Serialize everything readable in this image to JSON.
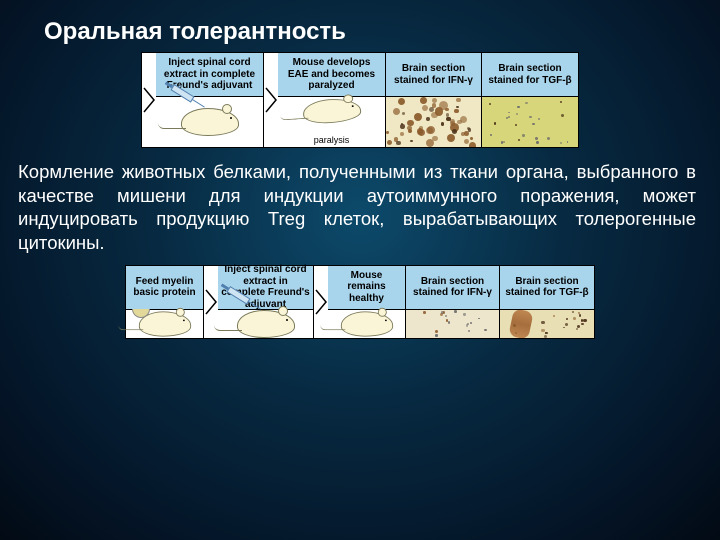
{
  "title": "Оральная толерантность",
  "body_text": "Кормление животных белками, полученными из ткани органа, выбранного в качестве мишени для индукции аутоиммунного поражения, может индуцировать продукцию Treg клеток, вырабатывающих толерогенные цитокины.",
  "row1": {
    "panels": [
      {
        "header": "Inject spinal cord extract in complete Freund's adjuvant"
      },
      {
        "header": "Mouse develops EAE and becomes paralyzed",
        "caption": "paralysis"
      },
      {
        "header": "Brain section stained for IFN-γ"
      },
      {
        "header": "Brain section stained for TGF-β"
      }
    ],
    "ifn_bg": "#f0e8c4",
    "tgf_bg": "#d8d67a"
  },
  "row2": {
    "panels": [
      {
        "header": "Feed myelin basic protein"
      },
      {
        "header": "Inject spinal cord extract in complete Freund's adjuvant"
      },
      {
        "header": "Mouse remains healthy"
      },
      {
        "header": "Brain section stained for IFN-γ"
      },
      {
        "header": "Brain section stained for TGF-β"
      }
    ],
    "ifn_bg": "#ede6cc",
    "tgf_bg": "#e8e0b4",
    "tgf_streak": "#9a5a28"
  },
  "colors": {
    "header_bg": "#a9d5ec",
    "mouse_fill": "#fbf5d8"
  }
}
